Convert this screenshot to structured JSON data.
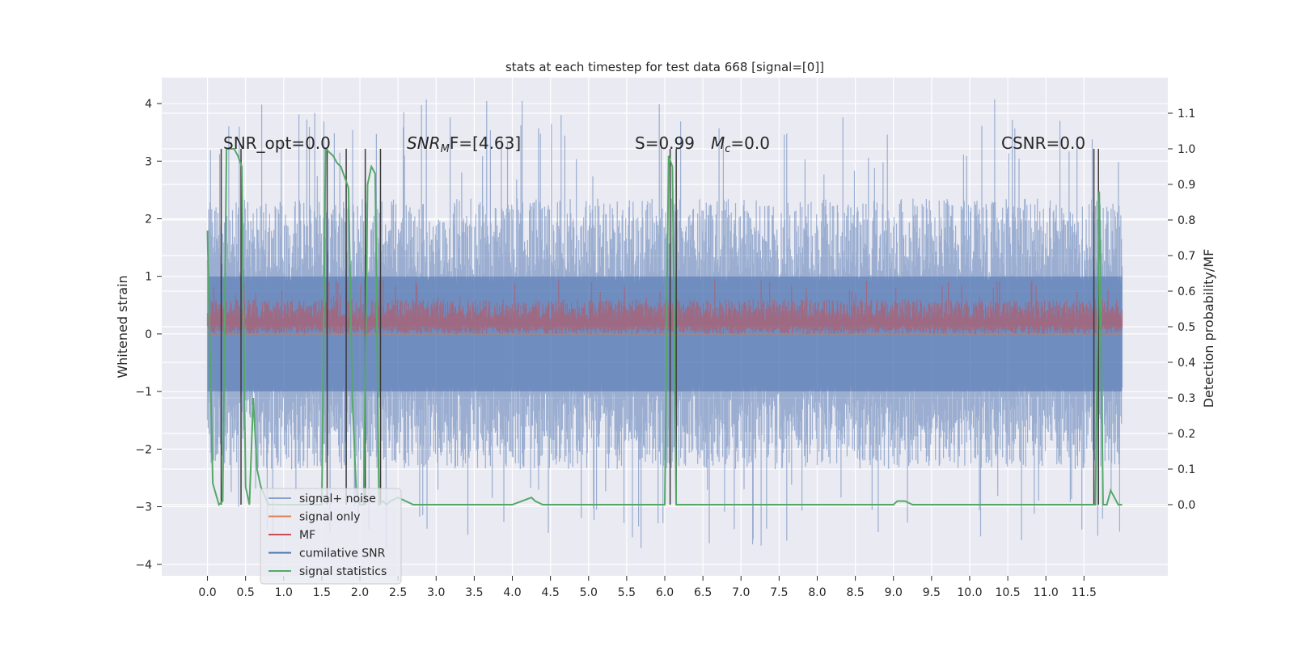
{
  "chart_data": {
    "type": "line",
    "title": "stats at each timestep for test data 668 [signal=[0]]",
    "ylabel": "Whitened strain",
    "ylabel_right": "Detection probability/MF",
    "xlim": [
      -0.6,
      12.6
    ],
    "ylim": [
      -4.2,
      4.45
    ],
    "ylim_right": [
      -0.2,
      1.2
    ],
    "x_ticks": [
      0.0,
      0.5,
      1.0,
      1.5,
      2.0,
      2.5,
      3.0,
      3.5,
      4.0,
      4.5,
      5.0,
      5.5,
      6.0,
      6.5,
      7.0,
      7.5,
      8.0,
      8.5,
      9.0,
      9.5,
      10.0,
      10.5,
      11.0,
      11.5
    ],
    "x_tick_labels": [
      "0.0",
      "0.5",
      "1.0",
      "1.5",
      "2.0",
      "2.5",
      "3.0",
      "3.5",
      "4.0",
      "4.5",
      "5.0",
      "5.5",
      "6.0",
      "6.5",
      "7.0",
      "7.5",
      "8.0",
      "8.5",
      "9.0",
      "9.5",
      "10.0",
      "10.5",
      "11.0",
      "11.5"
    ],
    "y_ticks": [
      4,
      3,
      2,
      1,
      0,
      -1,
      -2,
      -3,
      -4
    ],
    "y_tick_labels": [
      "4",
      "3",
      "2",
      "1",
      "0",
      "−1",
      "−2",
      "−3",
      "−4"
    ],
    "y2_ticks": [
      1.1,
      1.0,
      0.9,
      0.8,
      0.7,
      0.6,
      0.5,
      0.4,
      0.3,
      0.2,
      0.1,
      0.0
    ],
    "y2_tick_labels": [
      "1.1",
      "1.0",
      "0.9",
      "0.8",
      "0.7",
      "0.6",
      "0.5",
      "0.4",
      "0.3",
      "0.2",
      "0.1",
      "0.0"
    ],
    "grid": true,
    "legend_position": "lower-left",
    "annotations": [
      {
        "text": "SNR_opt=0.0"
      },
      {
        "text": "SNR",
        "sub": "M",
        "rest": "F=[4.63]"
      },
      {
        "text": "S=0.99"
      },
      {
        "text": "M",
        "sub": "c",
        "rest": "=0.0"
      },
      {
        "text": "CSNR=0.0"
      }
    ],
    "series": [
      {
        "name": "signal+ noise",
        "color": "#4c72b0",
        "x_range": [
          0.0,
          12.0
        ],
        "envelope": {
          "upper_max": 4.1,
          "lower_min": -3.75,
          "typical_upper": 2.3,
          "typical_lower": -2.3
        }
      },
      {
        "name": "signal only",
        "color": "#dd8452",
        "values_constant": 0.0
      },
      {
        "name": "MF",
        "color": "#c44e52",
        "x_range": [
          0.0,
          12.0
        ],
        "envelope": {
          "upper_max": 0.95,
          "lower_min": 0.0,
          "typical_upper": 0.55
        }
      },
      {
        "name": "cumilative SNR",
        "color": "#4c72b0",
        "values_constant": 0.0
      },
      {
        "name": "signal statistics",
        "color": "#55a868",
        "x": [
          0.0,
          0.07,
          0.15,
          0.2,
          0.25,
          0.3,
          0.35,
          0.4,
          0.45,
          0.5,
          0.55,
          0.6,
          0.65,
          0.7,
          0.8,
          1.0,
          1.5,
          1.55,
          1.6,
          1.65,
          1.7,
          1.75,
          1.8,
          1.85,
          1.9,
          1.95,
          2.0,
          2.05,
          2.1,
          2.15,
          2.2,
          2.25,
          2.3,
          2.35,
          2.4,
          2.5,
          2.7,
          3.0,
          3.5,
          4.0,
          4.25,
          4.3,
          4.4,
          4.6,
          5.0,
          5.5,
          6.0,
          6.05,
          6.1,
          6.15,
          6.2,
          6.5,
          7.0,
          8.0,
          9.0,
          9.05,
          9.15,
          9.25,
          9.5,
          10.0,
          10.3,
          10.5,
          11.0,
          11.5,
          11.6,
          11.65,
          11.7,
          11.75,
          11.8,
          11.85,
          11.9,
          11.95,
          12.0
        ],
        "y": [
          0.77,
          0.06,
          0.0,
          0.01,
          1.0,
          1.0,
          1.0,
          0.98,
          0.95,
          0.05,
          0.0,
          0.3,
          0.1,
          0.05,
          0.0,
          0.0,
          0.0,
          1.0,
          0.99,
          0.98,
          0.96,
          0.95,
          0.92,
          0.89,
          0.3,
          0.05,
          0.0,
          0.0,
          0.9,
          0.95,
          0.93,
          0.0,
          0.01,
          0.0,
          0.01,
          0.02,
          0.0,
          0.0,
          0.0,
          0.0,
          0.02,
          0.01,
          0.0,
          0.0,
          0.0,
          0.0,
          0.0,
          0.98,
          0.95,
          0.0,
          0.0,
          0.0,
          0.0,
          0.0,
          0.0,
          0.01,
          0.01,
          0.0,
          0.0,
          0.0,
          0.0,
          0.0,
          0.0,
          0.0,
          0.0,
          0.0,
          0.88,
          0.0,
          0.0,
          0.04,
          0.02,
          0.0,
          0.0
        ]
      }
    ],
    "vertical_markers": [
      0.18,
      0.44,
      1.57,
      1.82,
      2.07,
      2.27,
      6.07,
      6.15,
      11.63,
      11.69
    ]
  }
}
